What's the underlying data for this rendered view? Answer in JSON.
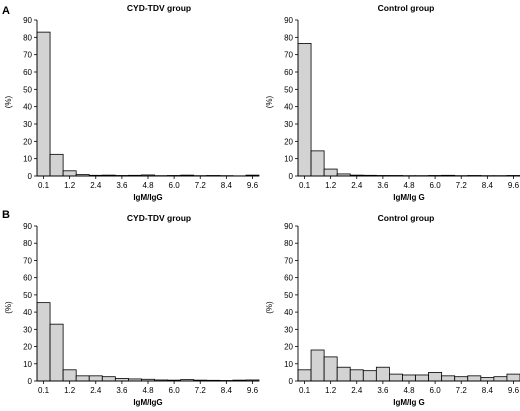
{
  "panel_labels": [
    "A",
    "B"
  ],
  "chart_data": [
    {
      "type": "bar",
      "title": "CYD-TDV group",
      "xlabel": "IgM/IgG",
      "ylabel": "(%)",
      "ylim": [
        0,
        90
      ],
      "yticks": [
        "0",
        "10",
        "20",
        "30",
        "40",
        "50",
        "60",
        "70",
        "80",
        "90"
      ],
      "xticks": [
        "0.1",
        "1.2",
        "2.4",
        "3.6",
        "4.8",
        "6.0",
        "7.2",
        "8.4",
        "9.6"
      ],
      "categories": [
        "0.1",
        "0.7",
        "1.2",
        "1.8",
        "2.4",
        "3.0",
        "3.6",
        "4.2",
        "4.8",
        "5.4",
        "6.0",
        "6.6",
        "7.2",
        "7.8",
        "8.4",
        "9.0",
        "9.6"
      ],
      "values": [
        83,
        12.5,
        3,
        0.8,
        0.4,
        0.5,
        0.3,
        0.4,
        0.6,
        0.2,
        0.3,
        0.5,
        0.2,
        0.3,
        0.2,
        0.1,
        0.5
      ]
    },
    {
      "type": "bar",
      "title": "Control group",
      "xlabel": "IgM/Ig G",
      "ylabel": "(%)",
      "ylim": [
        0,
        90
      ],
      "yticks": [
        "0",
        "10",
        "20",
        "30",
        "40",
        "50",
        "60",
        "70",
        "80",
        "90"
      ],
      "xticks": [
        "0.1",
        "1.2",
        "2.4",
        "3.6",
        "4.8",
        "6.0",
        "7.2",
        "8.4",
        "9.6"
      ],
      "categories": [
        "0.1",
        "0.7",
        "1.2",
        "1.8",
        "2.4",
        "3.0",
        "3.6",
        "4.2",
        "4.8",
        "5.4",
        "6.0",
        "6.6",
        "7.2",
        "7.8",
        "8.4",
        "9.0",
        "9.6"
      ],
      "values": [
        76.5,
        14.5,
        4,
        1.2,
        0.5,
        0.4,
        0.3,
        0.3,
        0.2,
        0.2,
        0.3,
        0.4,
        0.2,
        0.3,
        0.2,
        0.2,
        0.3
      ]
    },
    {
      "type": "bar",
      "title": "CYD-TDV group",
      "xlabel": "IgM/IgG",
      "ylabel": "(%)",
      "ylim": [
        0,
        90
      ],
      "yticks": [
        "0",
        "10",
        "20",
        "30",
        "40",
        "50",
        "60",
        "70",
        "80",
        "90"
      ],
      "xticks": [
        "0.1",
        "1.2",
        "2.4",
        "3.6",
        "4.8",
        "6.0",
        "7.2",
        "8.4",
        "9.6"
      ],
      "categories": [
        "0.1",
        "0.7",
        "1.2",
        "1.8",
        "2.4",
        "3.0",
        "3.6",
        "4.2",
        "4.8",
        "5.4",
        "6.0",
        "6.6",
        "7.2",
        "7.8",
        "8.4",
        "9.0",
        "9.6"
      ],
      "values": [
        45.5,
        33,
        6.5,
        3,
        3,
        2.5,
        1.5,
        1.2,
        1,
        0.6,
        0.5,
        0.8,
        0.5,
        0.4,
        0.3,
        0.5,
        0.6
      ]
    },
    {
      "type": "bar",
      "title": "Control group",
      "xlabel": "IgM/Ig G",
      "ylabel": "(%)",
      "ylim": [
        0,
        90
      ],
      "yticks": [
        "0",
        "10",
        "20",
        "30",
        "40",
        "50",
        "60",
        "70",
        "80",
        "90"
      ],
      "xticks": [
        "0.1",
        "1.2",
        "2.4",
        "3.6",
        "4.8",
        "6.0",
        "7.2",
        "8.4",
        "9.6"
      ],
      "categories": [
        "0.1",
        "0.7",
        "1.2",
        "1.8",
        "2.4",
        "3.0",
        "3.6",
        "4.2",
        "4.8",
        "5.4",
        "6.0",
        "6.6",
        "7.2",
        "7.8",
        "8.4",
        "9.0",
        "9.6"
      ],
      "values": [
        6.5,
        18,
        14,
        8,
        6.5,
        6,
        8,
        4,
        3.5,
        3.5,
        5,
        3,
        2.5,
        3,
        2,
        2.5,
        4
      ]
    }
  ]
}
